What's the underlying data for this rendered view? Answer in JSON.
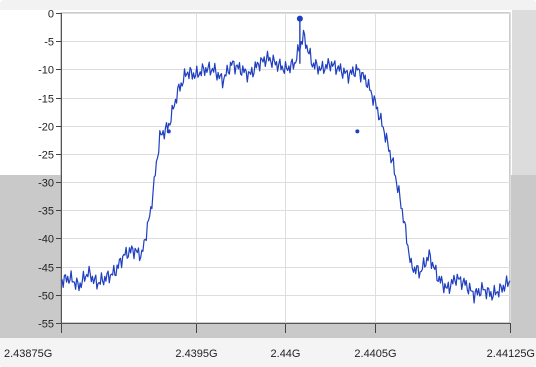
{
  "chart_data": {
    "type": "line",
    "title": "",
    "xlabel": "",
    "ylabel": "",
    "x_ticks": [
      {
        "value": 2.43875,
        "label": "2.43875G"
      },
      {
        "value": 2.4395,
        "label": "2.4395G"
      },
      {
        "value": 2.44,
        "label": "2.44G"
      },
      {
        "value": 2.4405,
        "label": "2.4405G"
      },
      {
        "value": 2.44125,
        "label": "2.44125G"
      }
    ],
    "y_ticks": [
      0,
      -5,
      -10,
      -15,
      -20,
      -25,
      -30,
      -35,
      -40,
      -45,
      -50,
      -55
    ],
    "xlim": [
      2.43875,
      2.44125
    ],
    "ylim": [
      -55,
      0
    ],
    "grid": true,
    "series": [
      {
        "color": "#1f3fbf",
        "x": [
          2.43875,
          2.4388,
          2.43885,
          2.4389,
          2.43895,
          2.439,
          2.43905,
          2.4391,
          2.43915,
          2.4392,
          2.43925,
          2.4393,
          2.43935,
          2.4394,
          2.43945,
          2.4395,
          2.43955,
          2.4396,
          2.43965,
          2.4397,
          2.43975,
          2.4398,
          2.43985,
          2.4399,
          2.43995,
          2.44,
          2.44005,
          2.4401,
          2.44015,
          2.4402,
          2.44025,
          2.4403,
          2.44035,
          2.4404,
          2.44045,
          2.4405,
          2.44055,
          2.4406,
          2.44065,
          2.4407,
          2.44075,
          2.4408,
          2.44085,
          2.4409,
          2.44095,
          2.441,
          2.44105,
          2.4411,
          2.44115,
          2.4412,
          2.44125
        ],
        "y": [
          -47.5,
          -47,
          -48.5,
          -46,
          -48,
          -47,
          -46,
          -43,
          -42,
          -43,
          -35,
          -22,
          -20,
          -14,
          -10.5,
          -11,
          -10,
          -10,
          -12,
          -9,
          -10,
          -11,
          -9,
          -8,
          -9,
          -10,
          -9,
          -4,
          -9,
          -10,
          -9,
          -10,
          -11,
          -10,
          -12,
          -16,
          -21,
          -27,
          -35,
          -45,
          -46,
          -43,
          -47,
          -49,
          -47,
          -48,
          -50,
          -49,
          -50,
          -49,
          -47.5
        ]
      }
    ],
    "peak_marker": {
      "x": 2.44008,
      "y": -1
    },
    "markers": [
      {
        "x": 2.43935,
        "y": -21
      },
      {
        "x": 2.4404,
        "y": -21
      }
    ]
  }
}
